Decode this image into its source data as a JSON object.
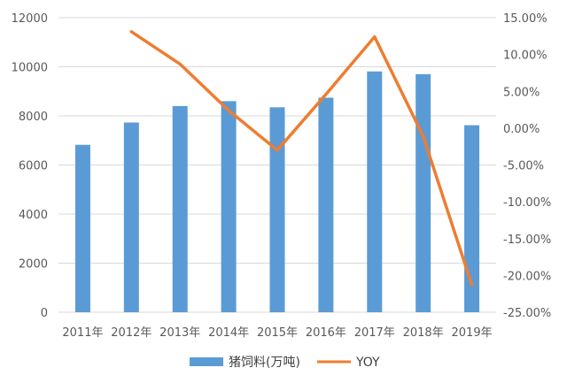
{
  "chart_data": {
    "type": "bar",
    "title": "",
    "xlabel": "",
    "ylabel": "",
    "y2label": "",
    "categories": [
      "2011年",
      "2012年",
      "2013年",
      "2014年",
      "2015年",
      "2016年",
      "2017年",
      "2018年",
      "2019年"
    ],
    "series": [
      {
        "name": "猪饲料(万吨)",
        "type": "bar",
        "axis": "left",
        "color": "#5b9bd5",
        "values": [
          6820,
          7730,
          8400,
          8600,
          8350,
          8740,
          9810,
          9700,
          7620
        ]
      },
      {
        "name": "YOY",
        "type": "line",
        "axis": "right",
        "color": "#ed7d31",
        "values": [
          null,
          13.1,
          8.7,
          2.4,
          -3.0,
          4.6,
          12.4,
          -1.1,
          -21.3
        ]
      }
    ],
    "ylim": [
      0,
      12000
    ],
    "y_ticks": [
      0,
      2000,
      4000,
      6000,
      8000,
      10000,
      12000
    ],
    "y_tick_labels": [
      "0",
      "2000",
      "4000",
      "6000",
      "8000",
      "10000",
      "12000"
    ],
    "y2lim": [
      -25,
      15
    ],
    "y2_ticks": [
      -25,
      -20,
      -15,
      -10,
      -5,
      0,
      5,
      10,
      15
    ],
    "y2_tick_labels": [
      "-25.00%",
      "-20.00%",
      "-15.00%",
      "-10.00%",
      "-5.00%",
      "0.00%",
      "5.00%",
      "10.00%",
      "15.00%"
    ],
    "grid": true,
    "legend": "bottom"
  },
  "legend": {
    "bar_label": "猪饲料(万吨)",
    "line_label": "YOY"
  }
}
